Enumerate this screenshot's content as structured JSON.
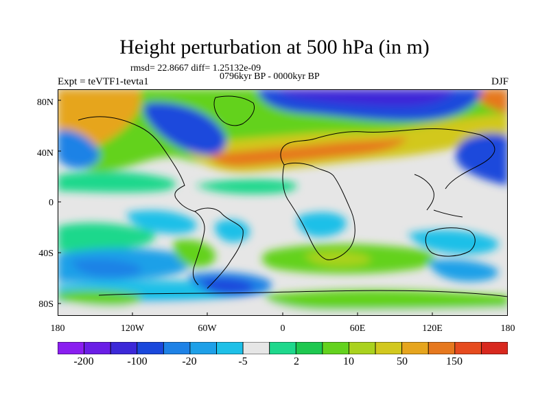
{
  "title": "Height perturbation at 500 hPa (in m)",
  "stats": "rmsd= 22.8667 diff= 1.25132e-09",
  "period": "0796kyr BP - 0000kyr BP",
  "experiment": "Expt = teVTF1-tevta1",
  "season": "DJF",
  "lat_labels": [
    "80N",
    "40N",
    "0",
    "40S",
    "80S"
  ],
  "lon_labels": [
    "180",
    "120W",
    "60W",
    "0",
    "60E",
    "120E",
    "180"
  ],
  "colorbar": {
    "colors": [
      "#8a1ef0",
      "#6a1ee6",
      "#3c28d8",
      "#1a48dc",
      "#1e82e6",
      "#1ea0e8",
      "#1ec0e8",
      "#e6e6e6",
      "#1ed88c",
      "#1ec850",
      "#64d21e",
      "#aad21e",
      "#d2c81e",
      "#e6a51e",
      "#e6781e",
      "#e64b1e",
      "#d8281e"
    ],
    "labels": [
      "-200",
      "-100",
      "-20",
      "-5",
      "2",
      "10",
      "50",
      "150"
    ]
  }
}
